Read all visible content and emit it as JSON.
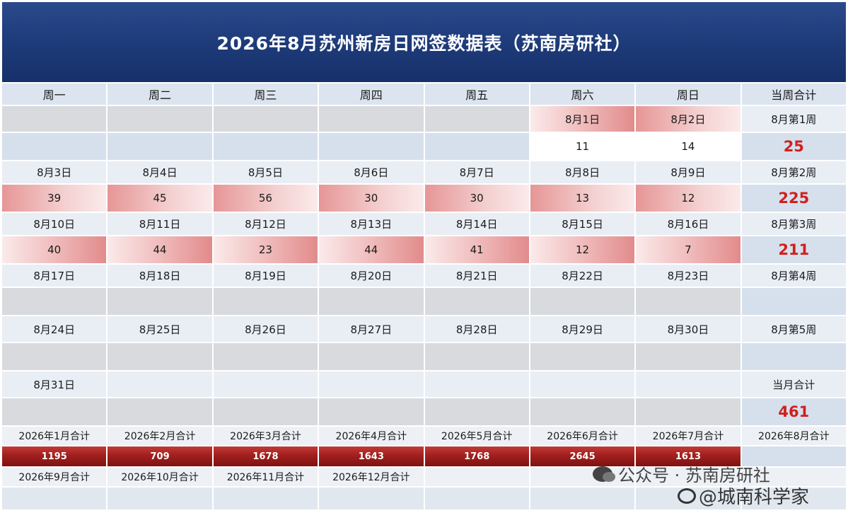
{
  "title": "2026年8月苏州新房日网签数据表（苏南房研社）",
  "weekdays": [
    "周一",
    "周二",
    "周三",
    "周四",
    "周五",
    "周六",
    "周日",
    "当周合计"
  ],
  "week1": {
    "dates": [
      "",
      "",
      "",
      "",
      "",
      "8月1日",
      "8月2日",
      "8月第1周"
    ],
    "values": [
      "",
      "",
      "",
      "",
      "",
      "11",
      "14",
      "25"
    ]
  },
  "week2": {
    "dates": [
      "8月3日",
      "8月4日",
      "8月5日",
      "8月6日",
      "8月7日",
      "8月8日",
      "8月9日",
      "8月第2周"
    ],
    "values": [
      "39",
      "45",
      "56",
      "30",
      "30",
      "13",
      "12",
      "225"
    ]
  },
  "week3": {
    "dates": [
      "8月10日",
      "8月11日",
      "8月12日",
      "8月13日",
      "8月14日",
      "8月15日",
      "8月16日",
      "8月第3周"
    ],
    "values": [
      "40",
      "44",
      "23",
      "44",
      "41",
      "12",
      "7",
      "211"
    ]
  },
  "week4": {
    "dates": [
      "8月17日",
      "8月18日",
      "8月19日",
      "8月20日",
      "8月21日",
      "8月22日",
      "8月23日",
      "8月第4周"
    ]
  },
  "week5": {
    "dates": [
      "8月24日",
      "8月25日",
      "8月26日",
      "8月27日",
      "8月28日",
      "8月29日",
      "8月30日",
      "8月第5周"
    ]
  },
  "week6": {
    "date": "8月31日",
    "total_label": "当月合计",
    "total_value": "461"
  },
  "monthly": {
    "labels_row1": [
      "2026年1月合计",
      "2026年2月合计",
      "2026年3月合计",
      "2026年4月合计",
      "2026年5月合计",
      "2026年6月合计",
      "2026年7月合计",
      "2026年8月合计"
    ],
    "values_row1": [
      "1195",
      "709",
      "1678",
      "1643",
      "1768",
      "2645",
      "1613"
    ],
    "labels_row2": [
      "2026年9月合计",
      "2026年10月合计",
      "2026年11月合计",
      "2026年12月合计"
    ]
  },
  "watermark": {
    "line1": "公众号 · 苏南房研社",
    "line2": "@城南科学家"
  },
  "colors": {
    "header_bg": "#1d3a78",
    "highlight_red": "#d0201e",
    "month_bar": "#8e1d1d"
  }
}
